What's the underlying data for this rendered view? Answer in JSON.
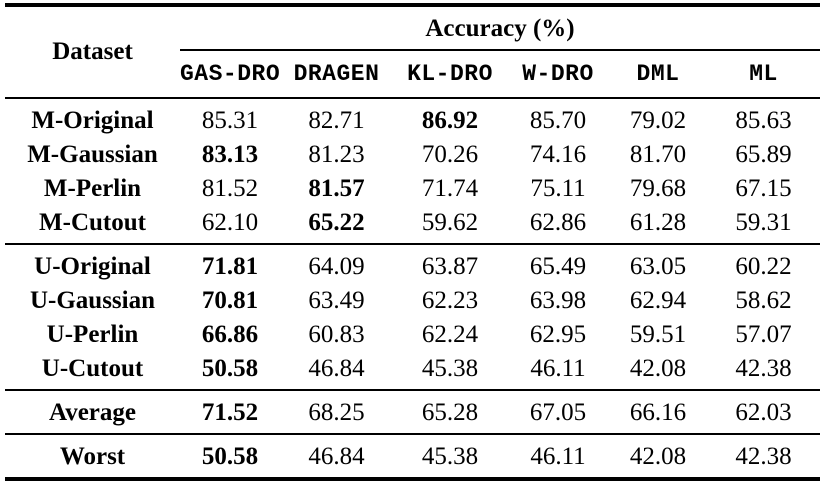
{
  "header": {
    "dataset_label": "Dataset",
    "group_label": "Accuracy (%)",
    "methods": [
      "GAS-DRO",
      "DRAGEN",
      "KL-DRO",
      "W-DRO",
      "DML",
      "ML"
    ]
  },
  "sections": [
    {
      "rows": [
        {
          "label": "M-Original",
          "values": [
            "85.31",
            "82.71",
            "86.92",
            "85.70",
            "79.02",
            "85.63"
          ],
          "bold": [
            2
          ]
        },
        {
          "label": "M-Gaussian",
          "values": [
            "83.13",
            "81.23",
            "70.26",
            "74.16",
            "81.70",
            "65.89"
          ],
          "bold": [
            0
          ]
        },
        {
          "label": "M-Perlin",
          "values": [
            "81.52",
            "81.57",
            "71.74",
            "75.11",
            "79.68",
            "67.15"
          ],
          "bold": [
            1
          ]
        },
        {
          "label": "M-Cutout",
          "values": [
            "62.10",
            "65.22",
            "59.62",
            "62.86",
            "61.28",
            "59.31"
          ],
          "bold": [
            1
          ]
        }
      ]
    },
    {
      "rows": [
        {
          "label": "U-Original",
          "values": [
            "71.81",
            "64.09",
            "63.87",
            "65.49",
            "63.05",
            "60.22"
          ],
          "bold": [
            0
          ]
        },
        {
          "label": "U-Gaussian",
          "values": [
            "70.81",
            "63.49",
            "62.23",
            "63.98",
            "62.94",
            "58.62"
          ],
          "bold": [
            0
          ]
        },
        {
          "label": "U-Perlin",
          "values": [
            "66.86",
            "60.83",
            "62.24",
            "62.95",
            "59.51",
            "57.07"
          ],
          "bold": [
            0
          ]
        },
        {
          "label": "U-Cutout",
          "values": [
            "50.58",
            "46.84",
            "45.38",
            "46.11",
            "42.08",
            "42.38"
          ],
          "bold": [
            0
          ]
        }
      ]
    },
    {
      "rows": [
        {
          "label": "Average",
          "values": [
            "71.52",
            "68.25",
            "65.28",
            "67.05",
            "66.16",
            "62.03"
          ],
          "bold": [
            0
          ]
        }
      ]
    },
    {
      "rows": [
        {
          "label": "Worst",
          "values": [
            "50.58",
            "46.84",
            "45.38",
            "46.11",
            "42.08",
            "42.38"
          ],
          "bold": [
            0
          ]
        }
      ]
    }
  ],
  "colors": {
    "text": "#000000",
    "background": "#ffffff",
    "rule": "#000000"
  }
}
